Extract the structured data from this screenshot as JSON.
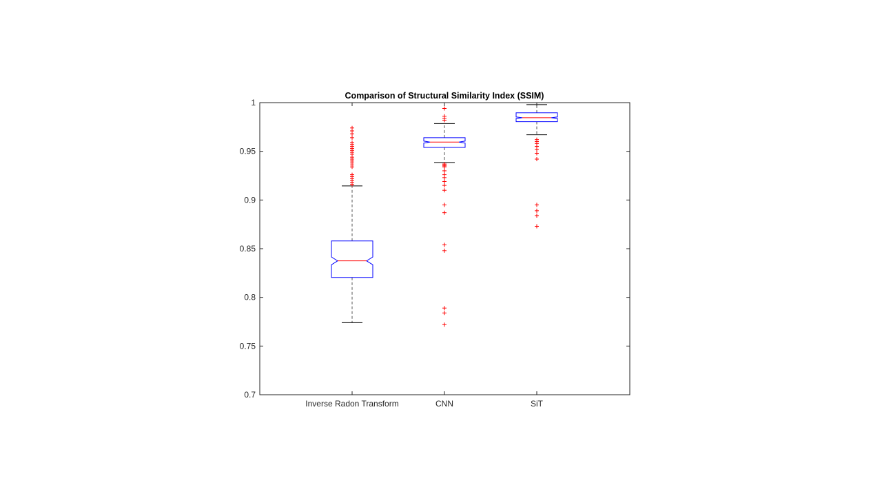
{
  "chart_data": {
    "type": "boxplot",
    "title": "Comparison of Structural Similarity Index (SSIM)",
    "xlabel": "",
    "ylabel": "",
    "ylim": [
      0.7,
      1.0
    ],
    "yticks": [
      0.7,
      0.75,
      0.8,
      0.85,
      0.9,
      0.95,
      1
    ],
    "ytick_labels": [
      "0.7",
      "0.75",
      "0.8",
      "0.85",
      "0.9",
      "0.95",
      "1"
    ],
    "notched": true,
    "grid": false,
    "categories": [
      "Inverse Radon Transform",
      "CNN",
      "SiT"
    ],
    "boxes": [
      {
        "q1": 0.8205,
        "median": 0.8375,
        "q3": 0.858,
        "notch_low": 0.8335,
        "notch_high": 0.8415,
        "whisker_low": 0.774,
        "whisker_high": 0.9145,
        "outliers": [
          0.974,
          0.971,
          0.968,
          0.964,
          0.959,
          0.957,
          0.955,
          0.953,
          0.951,
          0.949,
          0.947,
          0.944,
          0.942,
          0.94,
          0.938,
          0.936,
          0.934,
          0.926,
          0.924,
          0.922,
          0.92,
          0.918,
          0.916
        ]
      },
      {
        "q1": 0.954,
        "median": 0.9595,
        "q3": 0.964,
        "notch_low": 0.9585,
        "notch_high": 0.9605,
        "whisker_low": 0.9385,
        "whisker_high": 0.9785,
        "outliers": [
          0.994,
          0.986,
          0.984,
          0.982,
          0.937,
          0.936,
          0.935,
          0.934,
          0.93,
          0.926,
          0.923,
          0.919,
          0.915,
          0.91,
          0.895,
          0.887,
          0.854,
          0.848,
          0.789,
          0.784,
          0.772
        ]
      },
      {
        "q1": 0.9805,
        "median": 0.9845,
        "q3": 0.9895,
        "notch_low": 0.9837,
        "notch_high": 0.9853,
        "whisker_low": 0.967,
        "whisker_high": 0.998,
        "outliers": [
          0.962,
          0.96,
          0.958,
          0.955,
          0.952,
          0.948,
          0.942,
          0.895,
          0.889,
          0.884,
          0.873
        ]
      }
    ],
    "colors": {
      "box": "#0000ff",
      "median": "#ff0000",
      "whisker": "#000000",
      "whisker_line": "#555555",
      "outlier": "#ff0000",
      "axes": "#262626"
    }
  }
}
